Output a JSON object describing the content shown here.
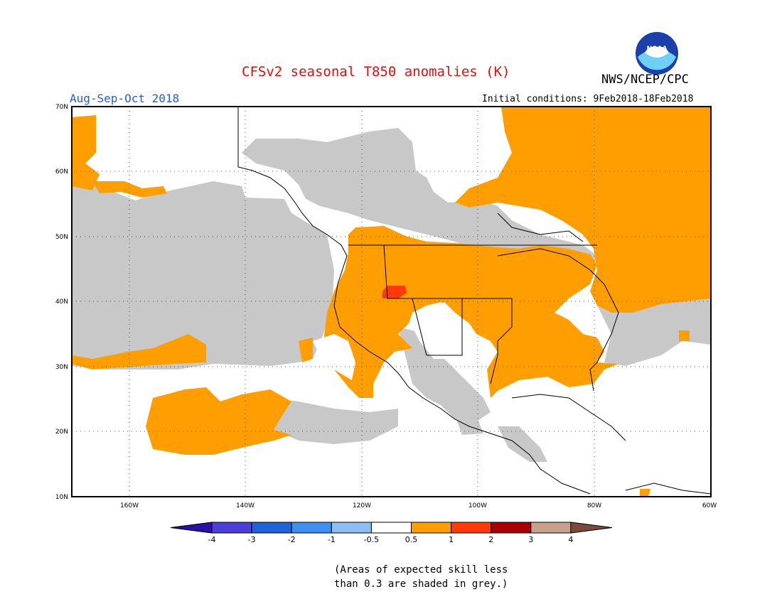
{
  "header": {
    "title": "CFSv2 seasonal T850 anomalies (K)",
    "agency": "NWS/NCEP/CPC",
    "season": "Aug-Sep-Oct 2018",
    "initial_conditions": "Initial conditions: 9Feb2018-18Feb2018",
    "logo_text": "NOAA"
  },
  "map": {
    "lat_labels": [
      "70N",
      "60N",
      "50N",
      "40N",
      "30N",
      "20N",
      "10N"
    ],
    "lon_labels": [
      "160W",
      "140W",
      "120W",
      "100W",
      "80W",
      "60W"
    ],
    "lat_range": [
      10,
      70
    ],
    "lon_range": [
      -172,
      -60
    ]
  },
  "colorbar": {
    "tick_labels": [
      "-4",
      "-3",
      "-2",
      "-1",
      "-0.5",
      "0.5",
      "1",
      "2",
      "3",
      "4"
    ],
    "colors": [
      "#2a0fa8",
      "#4b3fd6",
      "#1f63d6",
      "#3f8ff0",
      "#8cc0f5",
      "#ffffff",
      "#ff9e00",
      "#ff3a0a",
      "#a80000",
      "#c8a08c",
      "#7a4a3a"
    ]
  },
  "legend_colors": {
    "low_skill_grey": "#c8c8c8",
    "warm_anomaly": "#ff9e00",
    "strong_warm_anomaly": "#ff3a0a"
  },
  "footnote": {
    "line1": "(Areas of expected skill less",
    "line2": "than 0.3 are shaded in grey.)"
  }
}
